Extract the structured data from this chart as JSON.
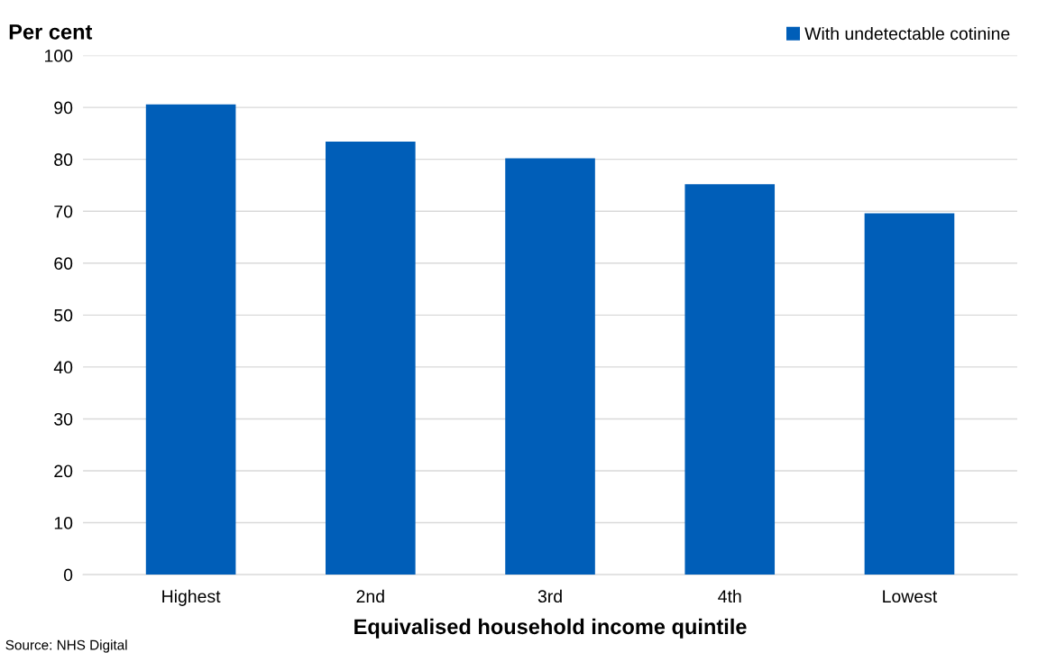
{
  "chart_data": {
    "type": "bar",
    "ylabel": "Per cent",
    "xlabel": "Equivalised household income quintile",
    "categories": [
      "Highest",
      "2nd",
      "3rd",
      "4th",
      "Lowest"
    ],
    "series": [
      {
        "name": "With undetectable cotinine",
        "color": "#005eb8",
        "values": [
          90.6,
          83.4,
          80.2,
          75.2,
          69.6
        ]
      }
    ],
    "ylim": [
      0,
      100
    ],
    "yticks": [
      0,
      10,
      20,
      30,
      40,
      50,
      60,
      70,
      80,
      90,
      100
    ],
    "grid": "y",
    "legend": "top right",
    "annotations": [
      "Source: NHS Digital"
    ]
  }
}
